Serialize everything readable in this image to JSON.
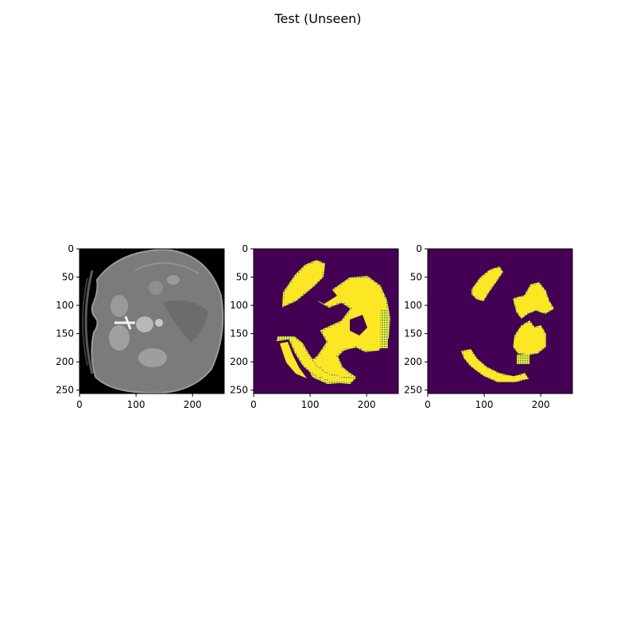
{
  "figure": {
    "title": "Test (Unseen)"
  },
  "panels": [
    {
      "content": "ct-slice",
      "x_ticks": [
        "0",
        "100",
        "200"
      ],
      "y_ticks": [
        "0",
        "50",
        "100",
        "150",
        "200",
        "250"
      ]
    },
    {
      "content": "predicted-mask",
      "x_ticks": [
        "0",
        "100",
        "200"
      ],
      "y_ticks": [
        "0",
        "50",
        "100",
        "150",
        "200",
        "250"
      ]
    },
    {
      "content": "ground-truth-mask",
      "x_ticks": [
        "0",
        "100",
        "200"
      ],
      "y_ticks": [
        "0",
        "50",
        "100",
        "150",
        "200",
        "250"
      ]
    }
  ],
  "colors": {
    "mask_background": "#440154",
    "mask_foreground": "#fde725",
    "mask_edge": "#21918c",
    "ct_background": "#000000",
    "ct_body": "#7a7a7a"
  }
}
